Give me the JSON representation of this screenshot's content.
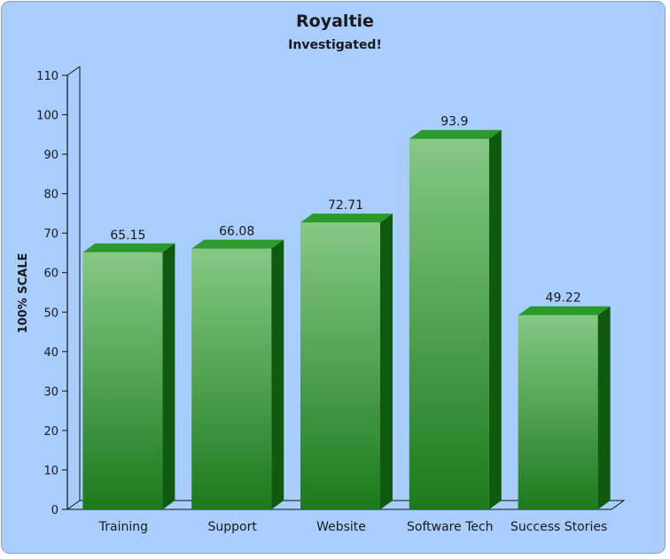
{
  "chart_data": {
    "type": "bar",
    "title": "Royaltie",
    "subtitle": "Investigated!",
    "xlabel": "",
    "ylabel": "100% SCALE",
    "categories": [
      "Training",
      "Support",
      "Website",
      "Software Tech",
      "Success Stories"
    ],
    "values": [
      65.15,
      66.08,
      72.71,
      93.9,
      49.22
    ],
    "value_labels": [
      "65.15",
      "66.08",
      "72.71",
      "93.9",
      "49.22"
    ],
    "ylim": [
      0,
      110
    ],
    "yticks": [
      0,
      10,
      20,
      30,
      40,
      50,
      60,
      70,
      80,
      90,
      100,
      110
    ],
    "grid": false,
    "legend": "none",
    "style": "3d",
    "colors": {
      "background": "#a9cdfd",
      "bar_top": "#85c985",
      "bar_bottom": "#1b7a1b",
      "bar_side": "#0f5a0f",
      "bar_cap": "#2a9a2a",
      "axis": "#111111"
    }
  }
}
